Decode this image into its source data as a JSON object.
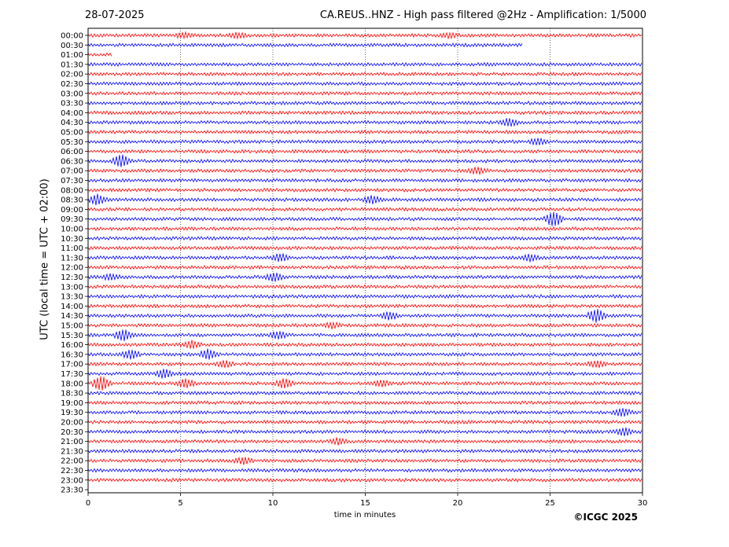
{
  "header": {
    "date": "28-07-2025",
    "title": "CA.REUS..HNZ - High pass filtered @2Hz - Amplification: 1/5000"
  },
  "footer": {
    "copyright": "©ICGC 2025"
  },
  "chart_data": {
    "type": "line",
    "title": "CA.REUS..HNZ - High pass filtered @2Hz - Amplification: 1/5000",
    "xlabel": "time in minutes",
    "ylabel": "UTC (local time = UTC + 02:00)",
    "xlim": [
      0,
      30
    ],
    "x_ticks": [
      0,
      5,
      10,
      15,
      20,
      25,
      30
    ],
    "grid": "vertical dotted at each x tick",
    "row_labels": [
      "00:00",
      "00:30",
      "01:00",
      "01:30",
      "02:00",
      "02:30",
      "03:00",
      "03:30",
      "04:00",
      "04:30",
      "05:00",
      "05:30",
      "06:00",
      "06:30",
      "07:00",
      "07:30",
      "08:00",
      "08:30",
      "09:00",
      "09:30",
      "10:00",
      "10:30",
      "11:00",
      "11:30",
      "12:00",
      "12:30",
      "13:00",
      "13:30",
      "14:00",
      "14:30",
      "15:00",
      "15:30",
      "16:00",
      "16:30",
      "17:00",
      "17:30",
      "18:00",
      "18:30",
      "19:00",
      "19:30",
      "20:00",
      "20:30",
      "21:00",
      "21:30",
      "22:00",
      "22:30",
      "23:00",
      "23:30"
    ],
    "colors": [
      "#ff0000",
      "#0000ff"
    ],
    "trace_end_minutes": [
      30,
      23.5,
      1.3,
      30,
      30,
      30,
      30,
      30,
      30,
      30,
      30,
      30,
      30,
      30,
      30,
      30,
      30,
      30,
      30,
      30,
      30,
      30,
      30,
      30,
      30,
      30,
      30,
      30,
      30,
      30,
      30,
      30,
      30,
      30,
      30,
      30,
      30,
      30,
      30,
      30,
      30,
      30,
      30,
      30,
      30,
      30,
      30,
      0
    ],
    "events": [
      {
        "row": "00:00",
        "minute": 5.2,
        "amplitude": 0.4
      },
      {
        "row": "00:00",
        "minute": 8.1,
        "amplitude": 0.35
      },
      {
        "row": "00:00",
        "minute": 19.6,
        "amplitude": 0.3
      },
      {
        "row": "04:30",
        "minute": 22.8,
        "amplitude": 0.6
      },
      {
        "row": "05:30",
        "minute": 24.3,
        "amplitude": 0.5
      },
      {
        "row": "06:30",
        "minute": 1.8,
        "amplitude": 1.0
      },
      {
        "row": "07:00",
        "minute": 21.1,
        "amplitude": 0.5
      },
      {
        "row": "08:30",
        "minute": 0.5,
        "amplitude": 0.8
      },
      {
        "row": "08:30",
        "minute": 15.4,
        "amplitude": 0.6
      },
      {
        "row": "09:30",
        "minute": 25.2,
        "amplitude": 1.3
      },
      {
        "row": "11:30",
        "minute": 10.4,
        "amplitude": 0.6
      },
      {
        "row": "11:30",
        "minute": 23.9,
        "amplitude": 0.5
      },
      {
        "row": "12:30",
        "minute": 1.2,
        "amplitude": 0.5
      },
      {
        "row": "12:30",
        "minute": 10.1,
        "amplitude": 0.7
      },
      {
        "row": "14:30",
        "minute": 16.3,
        "amplitude": 0.6
      },
      {
        "row": "14:30",
        "minute": 27.5,
        "amplitude": 1.1
      },
      {
        "row": "15:00",
        "minute": 13.2,
        "amplitude": 0.4
      },
      {
        "row": "15:30",
        "minute": 1.9,
        "amplitude": 0.9
      },
      {
        "row": "15:30",
        "minute": 10.3,
        "amplitude": 0.6
      },
      {
        "row": "16:00",
        "minute": 5.6,
        "amplitude": 0.6
      },
      {
        "row": "16:30",
        "minute": 2.3,
        "amplitude": 0.7
      },
      {
        "row": "16:30",
        "minute": 6.5,
        "amplitude": 0.8
      },
      {
        "row": "17:00",
        "minute": 7.4,
        "amplitude": 0.5
      },
      {
        "row": "17:00",
        "minute": 27.5,
        "amplitude": 0.5
      },
      {
        "row": "17:30",
        "minute": 4.1,
        "amplitude": 0.7
      },
      {
        "row": "18:00",
        "minute": 0.7,
        "amplitude": 1.2
      },
      {
        "row": "18:00",
        "minute": 5.3,
        "amplitude": 0.7
      },
      {
        "row": "18:00",
        "minute": 10.6,
        "amplitude": 0.7
      },
      {
        "row": "18:00",
        "minute": 15.9,
        "amplitude": 0.5
      },
      {
        "row": "19:30",
        "minute": 28.9,
        "amplitude": 0.6
      },
      {
        "row": "20:30",
        "minute": 29.0,
        "amplitude": 0.6
      },
      {
        "row": "21:00",
        "minute": 13.5,
        "amplitude": 0.5
      },
      {
        "row": "22:00",
        "minute": 8.4,
        "amplitude": 0.5
      }
    ]
  }
}
